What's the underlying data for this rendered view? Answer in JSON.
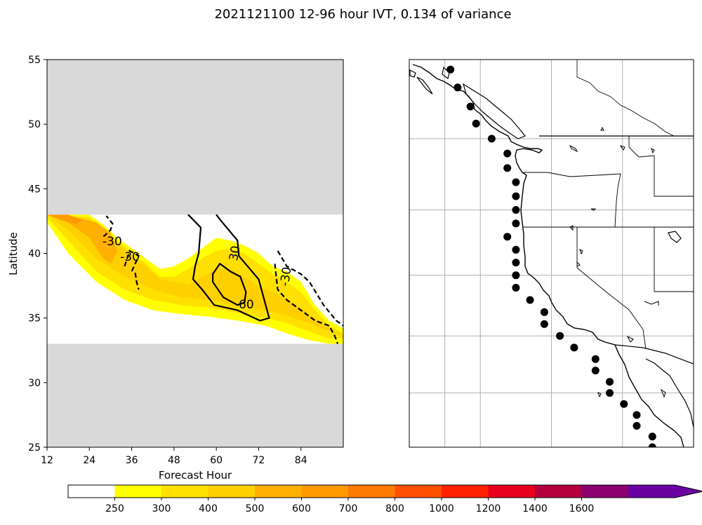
{
  "title": "2021121100 12-96 hour IVT, 0.134 of variance",
  "colors": {
    "background": "#ffffff",
    "masked": "#d9d9d9",
    "grid": "#b0b0b0",
    "contour": "#000000",
    "station": "#000000"
  },
  "chart_data": [
    {
      "type": "heatmap",
      "xlabel": "Forecast Hour",
      "ylabel": "Latitude",
      "xlim": [
        12,
        96
      ],
      "ylim": [
        25,
        55
      ],
      "xticks": [
        12,
        24,
        36,
        48,
        60,
        72,
        84
      ],
      "yticks": [
        25,
        30,
        35,
        40,
        45,
        50,
        55
      ],
      "valid_lat_range": [
        33,
        43
      ],
      "fill_levels": [
        {
          "level": 250,
          "color": "#ffff00",
          "band": [
            [
              12,
              42.4
            ],
            [
              18,
              40
            ],
            [
              26,
              37.8
            ],
            [
              34,
              36.4
            ],
            [
              42,
              35.6
            ],
            [
              50,
              35.3
            ],
            [
              58,
              35.1
            ],
            [
              66,
              34.8
            ],
            [
              74,
              34.4
            ],
            [
              80,
              33.8
            ],
            [
              86,
              33.3
            ],
            [
              92,
              33
            ],
            [
              96,
              33
            ],
            [
              96,
              34.2
            ],
            [
              92,
              34.8
            ],
            [
              88,
              36
            ],
            [
              84,
              37.8
            ],
            [
              80,
              38.6
            ],
            [
              76,
              39
            ],
            [
              72,
              40
            ],
            [
              68,
              40.6
            ],
            [
              64,
              41
            ],
            [
              60,
              41.2
            ],
            [
              56,
              40.4
            ],
            [
              52,
              39.6
            ],
            [
              48,
              39
            ],
            [
              44,
              38.8
            ],
            [
              40,
              39.6
            ],
            [
              36,
              40.4
            ],
            [
              32,
              41.2
            ],
            [
              28,
              42.2
            ],
            [
              24,
              43
            ],
            [
              12,
              43
            ]
          ]
        },
        {
          "level": 300,
          "color": "#ffe000",
          "band": [
            [
              12,
              42.8
            ],
            [
              18,
              41
            ],
            [
              26,
              38.6
            ],
            [
              34,
              37.2
            ],
            [
              42,
              36.4
            ],
            [
              50,
              36
            ],
            [
              58,
              35.8
            ],
            [
              66,
              35.4
            ],
            [
              74,
              35
            ],
            [
              80,
              34.6
            ],
            [
              86,
              34
            ],
            [
              92,
              33.4
            ],
            [
              96,
              33.4
            ],
            [
              96,
              33.8
            ],
            [
              92,
              34.4
            ],
            [
              88,
              35.6
            ],
            [
              84,
              37
            ],
            [
              80,
              37.8
            ],
            [
              76,
              38.4
            ],
            [
              72,
              39.2
            ],
            [
              68,
              40
            ],
            [
              64,
              40.4
            ],
            [
              60,
              40.2
            ],
            [
              56,
              39.6
            ],
            [
              52,
              38.8
            ],
            [
              48,
              38.2
            ],
            [
              44,
              38.2
            ],
            [
              40,
              39.2
            ],
            [
              36,
              40
            ],
            [
              32,
              41
            ],
            [
              28,
              42
            ],
            [
              24,
              42.8
            ],
            [
              12,
              43
            ]
          ]
        },
        {
          "level": 400,
          "color": "#ffd000",
          "band": [
            [
              12,
              43
            ],
            [
              18,
              41.8
            ],
            [
              26,
              39.6
            ],
            [
              34,
              38.2
            ],
            [
              42,
              37.2
            ],
            [
              50,
              36.6
            ],
            [
              58,
              36.4
            ],
            [
              66,
              36
            ],
            [
              74,
              35.6
            ],
            [
              80,
              35.2
            ],
            [
              86,
              34.6
            ],
            [
              92,
              34
            ],
            [
              96,
              33.6
            ],
            [
              96,
              33.7
            ],
            [
              92,
              34.2
            ],
            [
              88,
              35
            ],
            [
              84,
              35.8
            ],
            [
              80,
              36.4
            ],
            [
              76,
              37
            ],
            [
              72,
              37.4
            ],
            [
              68,
              38.2
            ],
            [
              64,
              38.8
            ],
            [
              60,
              38.8
            ],
            [
              56,
              38.2
            ],
            [
              52,
              37.6
            ],
            [
              48,
              37.8
            ],
            [
              44,
              38
            ],
            [
              40,
              39
            ],
            [
              36,
              39.8
            ],
            [
              32,
              40.8
            ],
            [
              28,
              41.8
            ],
            [
              24,
              42.6
            ],
            [
              12,
              43
            ]
          ]
        },
        {
          "level": 500,
          "color": "#ffb000",
          "band": [
            [
              12,
              43
            ],
            [
              18,
              42.4
            ],
            [
              24,
              41.2
            ],
            [
              28,
              39.6
            ],
            [
              30,
              39.2
            ],
            [
              32,
              40.2
            ],
            [
              30,
              41.6
            ],
            [
              26,
              42.4
            ],
            [
              20,
              42.8
            ],
            [
              12,
              43
            ]
          ]
        },
        {
          "level": 600,
          "color": "#ff9a00",
          "band": [
            [
              12,
              43
            ],
            [
              16,
              42.6
            ],
            [
              20,
              42.2
            ],
            [
              22,
              42.6
            ],
            [
              18,
              43
            ],
            [
              12,
              43
            ]
          ]
        }
      ],
      "contours": [
        {
          "level": -30,
          "style": "dashed",
          "label": "-30",
          "points": [
            [
              28,
              41.3
            ],
            [
              30,
              41.8
            ],
            [
              30.6,
              42.3
            ],
            [
              28.8,
              42.9
            ]
          ]
        },
        {
          "level": -30,
          "style": "dashed",
          "label": "-30",
          "points": [
            [
              34,
              39
            ],
            [
              35.4,
              40.2
            ],
            [
              38,
              39.8
            ],
            [
              36,
              38.6
            ]
          ]
        },
        {
          "level": -30,
          "style": "dashed",
          "label": "-30",
          "points": [
            [
              37,
              38.5
            ],
            [
              37.4,
              37.8
            ],
            [
              38,
              37.2
            ]
          ]
        },
        {
          "level": 30,
          "style": "solid",
          "label": "30",
          "points": [
            [
              52,
              43
            ],
            [
              55.6,
              42
            ],
            [
              55,
              40
            ],
            [
              54,
              39
            ],
            [
              53.4,
              38
            ],
            [
              56,
              37.2
            ],
            [
              59.4,
              36
            ],
            [
              66,
              35.6
            ],
            [
              72.4,
              34.8
            ],
            [
              75,
              35
            ],
            [
              72,
              38
            ],
            [
              66.4,
              39.8
            ],
            [
              66,
              41
            ],
            [
              61.4,
              42.5
            ],
            [
              60,
              43
            ]
          ]
        },
        {
          "level": 60,
          "style": "solid",
          "label": "60",
          "points": [
            [
              59,
              37.8
            ],
            [
              62,
              36.6
            ],
            [
              66,
              36
            ],
            [
              68,
              36.2
            ],
            [
              68.4,
              37
            ],
            [
              66.8,
              38.2
            ],
            [
              64,
              38.6
            ],
            [
              61,
              39.2
            ],
            [
              59,
              38.4
            ],
            [
              59,
              37.8
            ]
          ]
        },
        {
          "level": -30,
          "style": "dashed",
          "label": "-30",
          "points": [
            [
              77.4,
              40.2
            ],
            [
              80,
              39
            ],
            [
              84,
              38.4
            ],
            [
              86.4,
              37.8
            ],
            [
              90.4,
              36
            ],
            [
              94,
              34.8
            ],
            [
              96,
              34.4
            ]
          ]
        },
        {
          "level": -30,
          "style": "dashed",
          "label": "",
          "points": [
            [
              76.6,
              39.2
            ],
            [
              77,
              38.2
            ],
            [
              77.4,
              37.2
            ],
            [
              80,
              36.4
            ],
            [
              84,
              35.6
            ],
            [
              88,
              34.8
            ],
            [
              92,
              34.4
            ],
            [
              93.6,
              33.6
            ],
            [
              94.4,
              33
            ]
          ]
        }
      ],
      "contour_labels": [
        {
          "text": "-30",
          "x": 30.5,
          "y": 40.9
        },
        {
          "text": "-30",
          "x": 35.5,
          "y": 39.7
        },
        {
          "text": "30",
          "x": 65.3,
          "y": 40.0,
          "rotation": -80
        },
        {
          "text": "60",
          "x": 68.5,
          "y": 36.0
        },
        {
          "text": "-30",
          "x": 79.8,
          "y": 38.2,
          "rotation": -82
        }
      ]
    },
    {
      "type": "scatter",
      "map": "west-coast-north-america",
      "projection": "mercator",
      "lon_range": [
        -130,
        -110
      ],
      "lat_range": [
        25,
        55
      ],
      "graticule_lons": [
        -127.5,
        -125,
        -120,
        -115
      ],
      "graticule_lats": [
        30,
        35,
        40,
        45,
        50
      ],
      "stations": [
        {
          "lat": 54.4,
          "lon": -127.1
        },
        {
          "lat": 53.3,
          "lon": -126.6
        },
        {
          "lat": 52.1,
          "lon": -125.7
        },
        {
          "lat": 51.0,
          "lon": -125.3
        },
        {
          "lat": 50.0,
          "lon": -124.2
        },
        {
          "lat": 49.0,
          "lon": -123.1
        },
        {
          "lat": 48.0,
          "lon": -123.1
        },
        {
          "lat": 47.0,
          "lon": -122.5
        },
        {
          "lat": 46.0,
          "lon": -122.5
        },
        {
          "lat": 45.0,
          "lon": -122.5
        },
        {
          "lat": 44.0,
          "lon": -122.5
        },
        {
          "lat": 43.0,
          "lon": -123.1
        },
        {
          "lat": 42.0,
          "lon": -122.5
        },
        {
          "lat": 41.0,
          "lon": -122.5
        },
        {
          "lat": 40.0,
          "lon": -122.5
        },
        {
          "lat": 39.0,
          "lon": -122.5
        },
        {
          "lat": 38.0,
          "lon": -121.5
        },
        {
          "lat": 37.0,
          "lon": -120.5
        },
        {
          "lat": 36.0,
          "lon": -120.5
        },
        {
          "lat": 35.0,
          "lon": -119.4
        },
        {
          "lat": 34.0,
          "lon": -118.4
        },
        {
          "lat": 33.0,
          "lon": -116.9
        },
        {
          "lat": 32.0,
          "lon": -116.9
        },
        {
          "lat": 31.0,
          "lon": -115.9
        },
        {
          "lat": 30.0,
          "lon": -115.9
        },
        {
          "lat": 29.0,
          "lon": -114.9
        },
        {
          "lat": 28.0,
          "lon": -114.0
        },
        {
          "lat": 27.0,
          "lon": -114.0
        },
        {
          "lat": 26.0,
          "lon": -112.9
        },
        {
          "lat": 25.0,
          "lon": -112.9
        }
      ]
    }
  ],
  "colorbar": {
    "tick_labels": [
      "250",
      "300",
      "400",
      "500",
      "600",
      "700",
      "800",
      "1000",
      "1200",
      "1400",
      "1600"
    ],
    "colors": [
      "#ffffff",
      "#ffff00",
      "#ffe000",
      "#ffd000",
      "#ffb000",
      "#ff9a00",
      "#ff7a00",
      "#ff5000",
      "#ff2000",
      "#e8001e",
      "#b4003c",
      "#8c0070",
      "#6a00a0"
    ],
    "extend": "max"
  }
}
